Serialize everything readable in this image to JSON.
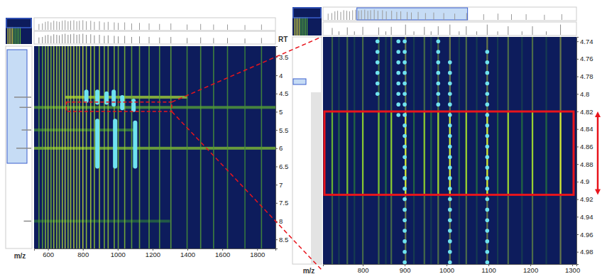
{
  "chart_data": [
    {
      "type": "heatmap",
      "x_label": "m/z",
      "y_label": "RT",
      "xlim": [
        520,
        1905
      ],
      "xticks": [
        600,
        800,
        1000,
        1200,
        1400,
        1600,
        1800
      ],
      "ylim": [
        3.2,
        8.75
      ],
      "yticks": [
        3.5,
        4,
        4.5,
        5,
        5.5,
        6,
        6.5,
        7,
        7.5,
        8,
        8.5
      ],
      "zlim": [
        0,
        1
      ],
      "streaks": {
        "mz": [
          548,
          568,
          585,
          600,
          617,
          633,
          650,
          665,
          682,
          698,
          715,
          730,
          748,
          765,
          780,
          800,
          820,
          845,
          866,
          895,
          923,
          945,
          980,
          1003,
          1040,
          1080,
          1125,
          1180,
          1240,
          1305,
          1398,
          1476,
          1550,
          1630,
          1730,
          1825
        ],
        "intensity": [
          0.55,
          0.6,
          0.75,
          0.8,
          0.7,
          0.85,
          0.8,
          0.75,
          0.85,
          0.9,
          0.8,
          0.85,
          0.9,
          0.8,
          0.85,
          0.9,
          0.8,
          0.85,
          0.75,
          0.8,
          0.7,
          0.75,
          0.7,
          0.65,
          0.7,
          0.6,
          0.65,
          0.6,
          0.55,
          0.6,
          0.5,
          0.55,
          0.5,
          0.5,
          0.45,
          0.5
        ]
      },
      "bands": {
        "rt": [
          4.6,
          4.88,
          5.5,
          6.0,
          8.0
        ],
        "mz_start": [
          700,
          520,
          520,
          520,
          520
        ],
        "mz_end": [
          1400,
          1905,
          1100,
          1905,
          1300
        ],
        "intensity": [
          0.8,
          0.55,
          0.45,
          0.7,
          0.35
        ]
      },
      "traces": {
        "color": "#6fe3f0",
        "mz": [
          820,
          883,
          936,
          977,
          1026,
          1091,
          883,
          985,
          1100
        ],
        "rt_start": [
          4.45,
          4.45,
          4.5,
          4.45,
          4.6,
          4.7,
          5.25,
          5.25,
          5.3
        ],
        "rt_end": [
          4.7,
          4.75,
          4.75,
          4.8,
          4.9,
          4.95,
          6.5,
          6.5,
          6.5
        ]
      },
      "zoom_box": {
        "color": "#e8141c",
        "line_style": "dashed",
        "xlim": [
          705,
          1310
        ],
        "ylim": [
          4.735,
          4.994
        ]
      }
    },
    {
      "type": "heatmap",
      "x_label": "m/z",
      "xlim": [
        705,
        1310
      ],
      "xticks": [
        800,
        900,
        1000,
        1100,
        1200,
        1300
      ],
      "ylim": [
        4.735,
        4.994
      ],
      "yticks": [
        4.74,
        4.76,
        4.78,
        4.8,
        4.82,
        4.84,
        4.86,
        4.88,
        4.9,
        4.92,
        4.94,
        4.96,
        4.98
      ],
      "zlim": [
        0,
        1
      ],
      "streaks": {
        "mz": [
          727,
          743,
          763,
          780,
          800,
          838,
          855,
          868,
          902,
          922,
          947,
          963,
          980,
          1008,
          1030,
          1047,
          1072,
          1097,
          1122,
          1147,
          1180,
          1205,
          1238,
          1272
        ],
        "intensity": [
          0.6,
          0.3,
          0.65,
          0.3,
          0.7,
          0.65,
          0.3,
          0.7,
          0.9,
          0.3,
          0.7,
          0.3,
          0.75,
          0.9,
          0.3,
          0.75,
          0.3,
          0.9,
          0.3,
          0.75,
          0.3,
          0.75,
          0.3,
          0.9
        ]
      },
      "dots": {
        "color": "#6fe3f0",
        "columns": [
          {
            "mz": 835,
            "rt": [
              4.74,
              4.752,
              4.764,
              4.776,
              4.788,
              4.8
            ]
          },
          {
            "mz": 885,
            "rt": [
              4.74,
              4.752,
              4.764,
              4.776,
              4.788,
              4.8,
              4.812,
              4.824
            ]
          },
          {
            "mz": 900,
            "rt": [
              4.74,
              4.752,
              4.764,
              4.776,
              4.788,
              4.8,
              4.812,
              4.824,
              4.836,
              4.848,
              4.86,
              4.872,
              4.884,
              4.896,
              4.908,
              4.92,
              4.932,
              4.944,
              4.956,
              4.968,
              4.98,
              4.992
            ]
          },
          {
            "mz": 980,
            "rt": [
              4.74,
              4.752,
              4.764,
              4.776,
              4.788,
              4.8,
              4.812
            ]
          },
          {
            "mz": 1008,
            "rt": [
              4.764,
              4.776,
              4.788,
              4.8,
              4.812,
              4.824,
              4.836,
              4.848,
              4.86,
              4.872,
              4.884,
              4.896,
              4.908,
              4.92,
              4.932,
              4.944,
              4.956,
              4.968,
              4.98,
              4.992
            ]
          },
          {
            "mz": 1097,
            "rt": [
              4.752,
              4.764,
              4.776,
              4.788,
              4.8,
              4.812,
              4.824,
              4.836,
              4.848,
              4.86,
              4.872,
              4.884,
              4.896,
              4.908,
              4.92,
              4.932,
              4.944,
              4.956,
              4.968,
              4.98,
              4.992
            ]
          }
        ]
      },
      "highlight": {
        "color": "#e8141c",
        "ylim": [
          4.82,
          4.915
        ]
      }
    }
  ]
}
